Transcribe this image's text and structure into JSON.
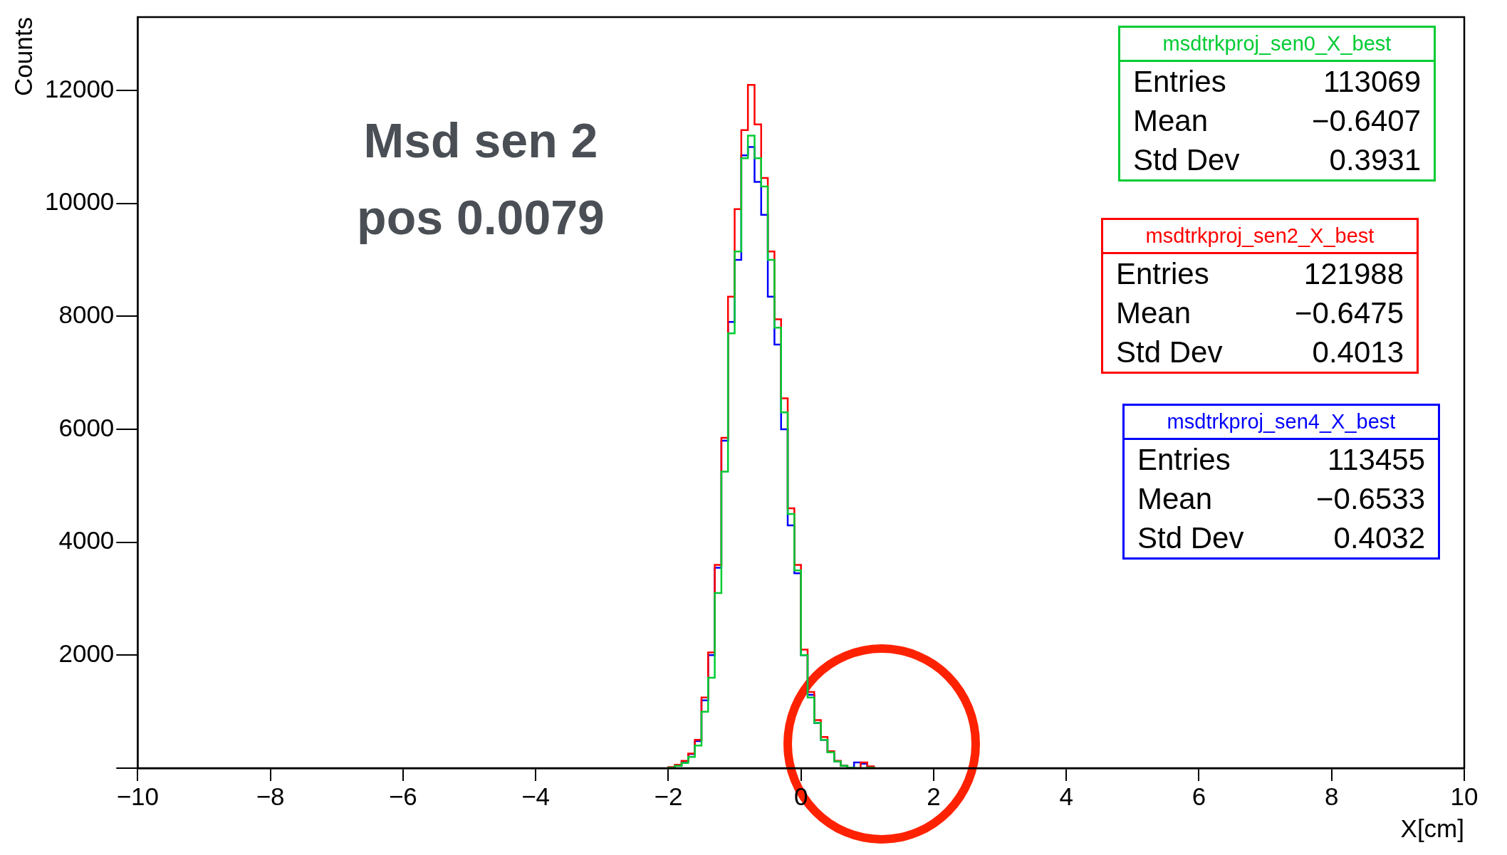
{
  "chart_data": {
    "type": "histogram",
    "xlabel": "X[cm]",
    "ylabel": "Counts",
    "bins": [
      -2.0,
      -1.9,
      -1.8,
      -1.7,
      -1.6,
      -1.5,
      -1.4,
      -1.3,
      -1.2,
      -1.1,
      -1.0,
      -0.9,
      -0.8,
      -0.7,
      -0.6,
      -0.5,
      -0.4,
      -0.3,
      -0.2,
      -0.1,
      0.0,
      0.1,
      0.2,
      0.3,
      0.4,
      0.5,
      0.6,
      0.7,
      0.8,
      0.9,
      1.0,
      1.1
    ],
    "series": [
      {
        "name": "msdtrkproj_sen0_X_best",
        "color": "#00cc33",
        "values": [
          10,
          40,
          90,
          200,
          400,
          1000,
          1600,
          3100,
          5250,
          7700,
          9150,
          10800,
          11200,
          10800,
          10300,
          9000,
          7800,
          6300,
          4500,
          3500,
          2000,
          1250,
          800,
          500,
          280,
          120,
          40,
          10,
          0,
          0,
          10
        ]
      },
      {
        "name": "msdtrkproj_sen2_X_best",
        "color": "#ff0000",
        "values": [
          20,
          60,
          130,
          260,
          500,
          1250,
          2050,
          3600,
          5850,
          8350,
          9900,
          11300,
          12100,
          11400,
          10450,
          9150,
          7950,
          6550,
          4600,
          3600,
          2100,
          1350,
          850,
          550,
          300,
          130,
          40,
          10,
          0,
          100,
          30
        ]
      },
      {
        "name": "msdtrkproj_sen4_X_best",
        "color": "#0000ff",
        "values": [
          10,
          50,
          120,
          250,
          480,
          1200,
          2000,
          3550,
          5800,
          7900,
          9000,
          10850,
          11000,
          10380,
          9800,
          8350,
          7500,
          6000,
          4300,
          3450,
          2000,
          1300,
          800,
          500,
          280,
          120,
          40,
          10,
          100,
          80,
          0
        ]
      }
    ],
    "xlim": [
      -10,
      10
    ],
    "ylim": [
      0,
      13300
    ],
    "xticks": [
      {
        "value": -10,
        "label": "−10"
      },
      {
        "value": -8,
        "label": "−8"
      },
      {
        "value": -6,
        "label": "−6"
      },
      {
        "value": -4,
        "label": "−4"
      },
      {
        "value": -2,
        "label": "−2"
      },
      0,
      2,
      4,
      6,
      8,
      10
    ],
    "yticks": [
      {
        "value": 0,
        "label": null
      },
      2000,
      4000,
      6000,
      8000,
      10000,
      12000
    ],
    "legend": "top right",
    "annotations": [
      "Msd sen 2",
      "pos 0.0079",
      "Entries 113069",
      "Mean −0.6407",
      "Std Dev 0.3931",
      "Entries 121988",
      "Mean −0.6475",
      "Std Dev 0.4013",
      "Entries 113455",
      "Mean −0.6533",
      "Std Dev 0.4032"
    ]
  }
}
